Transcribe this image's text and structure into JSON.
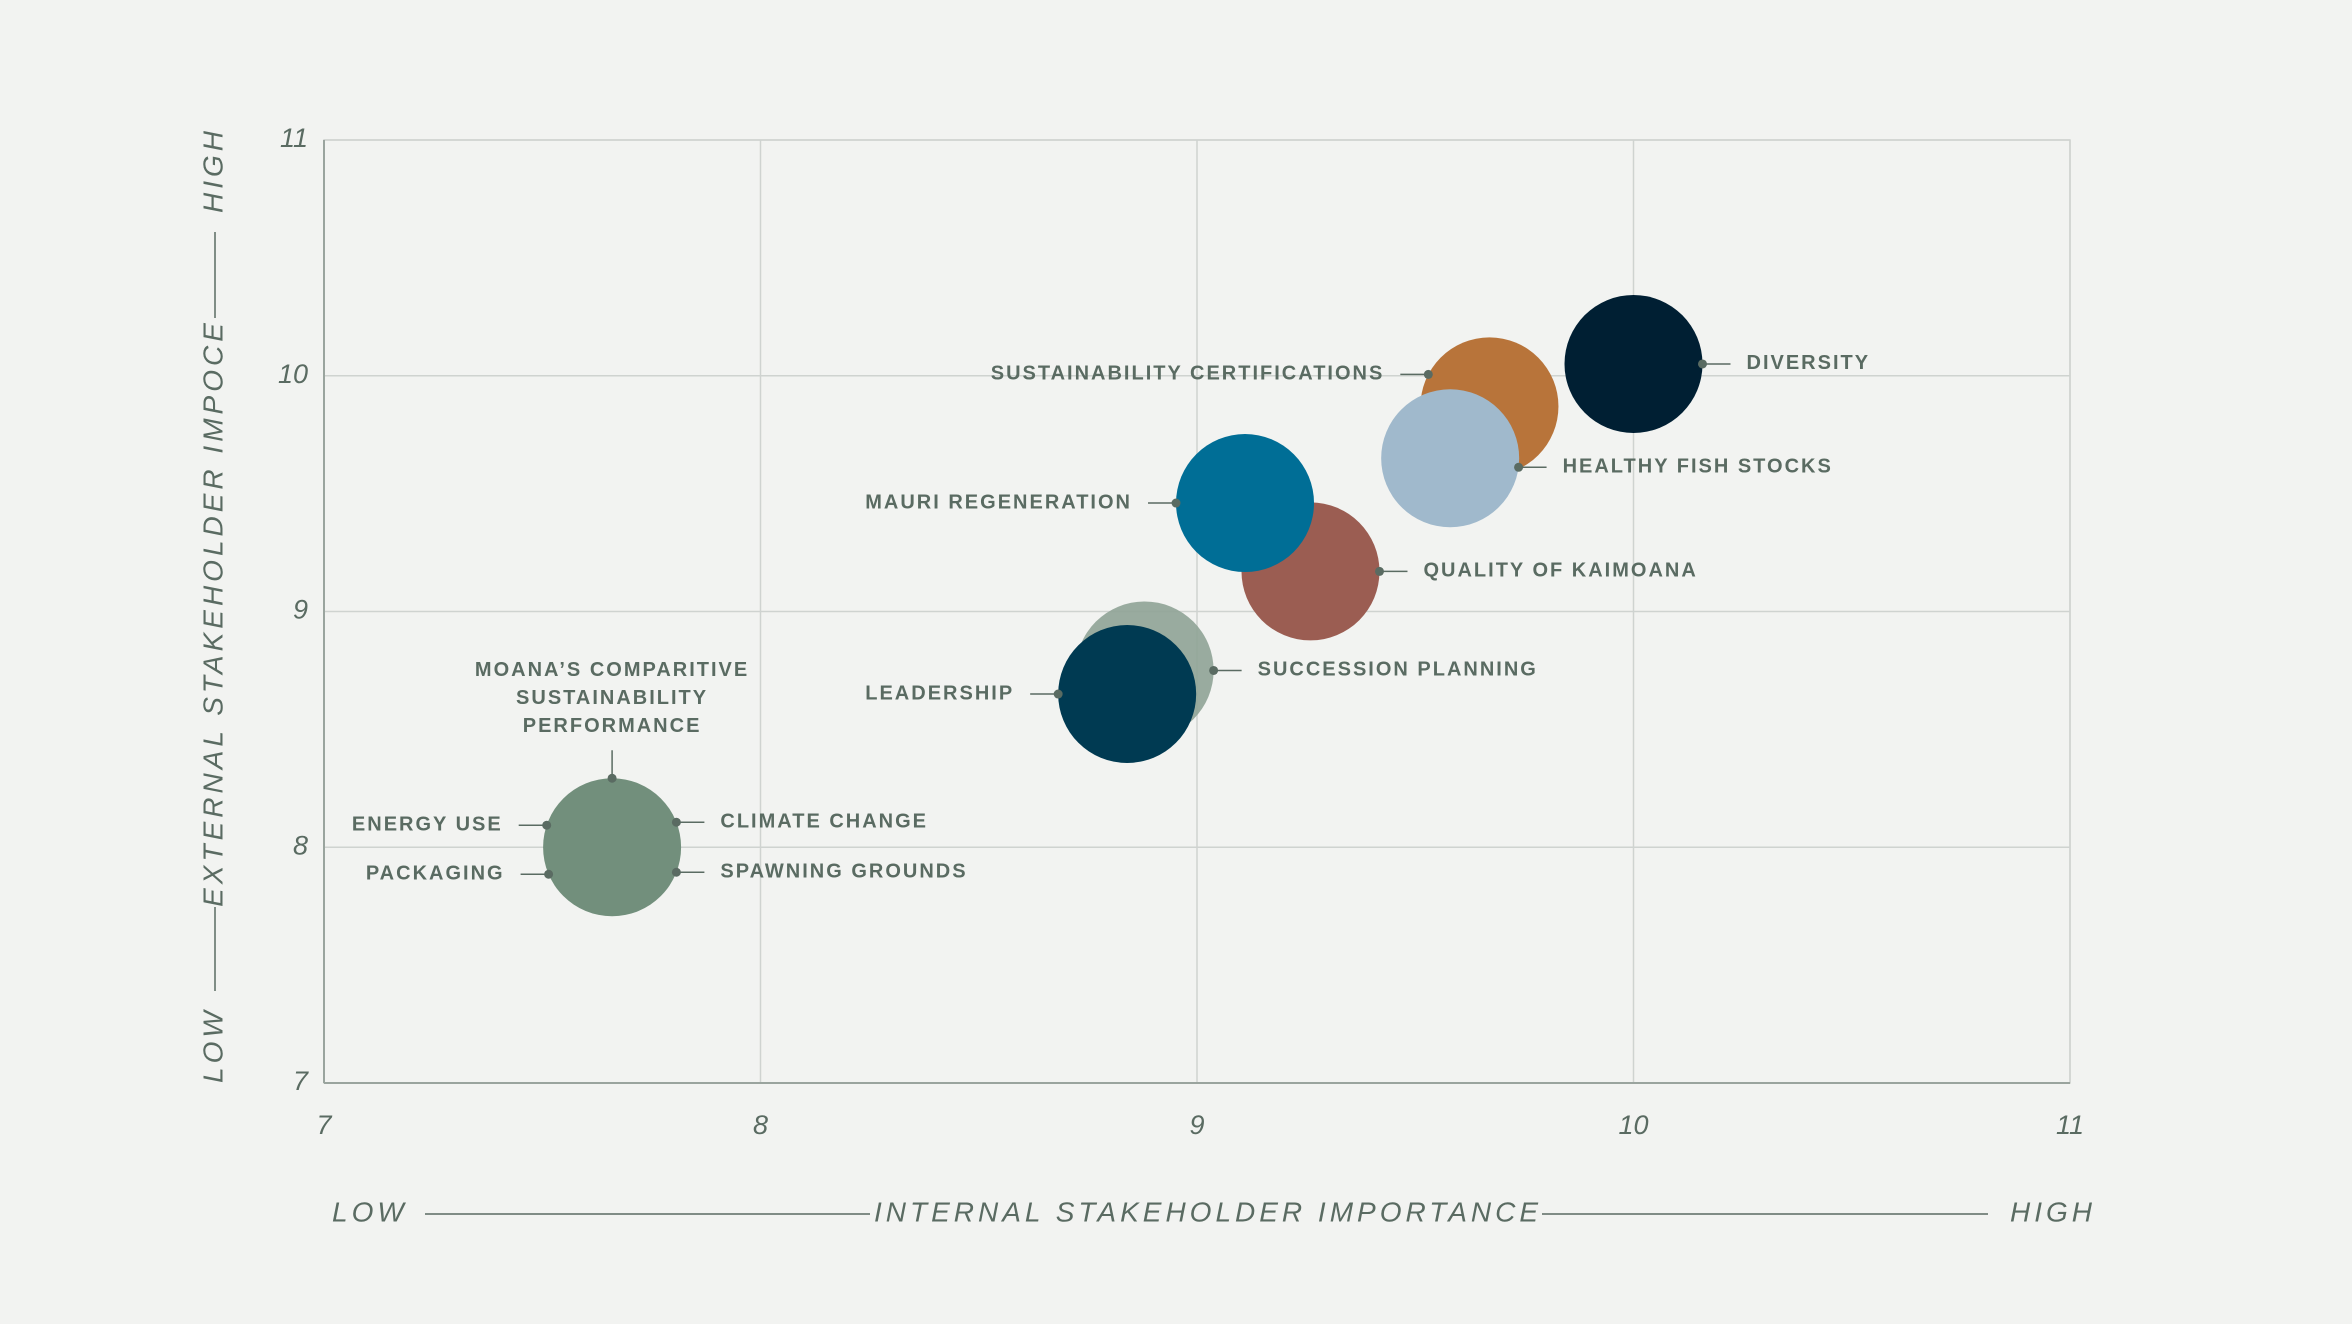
{
  "chart_data": {
    "type": "scatter",
    "x_axis": {
      "label": "INTERNAL STAKEHOLDER IMPORTANCE",
      "low": "LOW",
      "high": "HIGH"
    },
    "y_axis": {
      "label": "EXTERNAL STAKEHOLDER IMPOCE",
      "low": "LOW",
      "high": "HIGH"
    },
    "xlim": [
      7,
      11
    ],
    "xticks": [
      7,
      8,
      9,
      10,
      11
    ],
    "ylim": [
      7,
      11
    ],
    "yticks": [
      7,
      8,
      9,
      10,
      11
    ],
    "grid": true,
    "points": [
      {
        "labels": [
          "MOANA’S COMPARITIVE SUSTAINABILITY PERFORMANCE",
          "ENERGY USE",
          "CLIMATE CHANGE",
          "PACKAGING",
          "SPAWNING GROUNDS"
        ],
        "color": "#728f7c",
        "x": 7.66,
        "y": 8.0
      },
      {
        "labels": [
          "SUCCESSION PLANNING"
        ],
        "color": "#8fa396",
        "x": 8.88,
        "y": 8.75
      },
      {
        "labels": [
          "LEADERSHIP"
        ],
        "color": "#003a52",
        "x": 8.84,
        "y": 8.65
      },
      {
        "labels": [
          "QUALITY OF KAIMOANA"
        ],
        "color": "#9b5d52",
        "x": 9.26,
        "y": 9.17
      },
      {
        "labels": [
          "MAURI REGENERATION"
        ],
        "color": "#006e96",
        "x": 9.11,
        "y": 9.46
      },
      {
        "labels": [
          "SUSTAINABILITY CERTIFICATIONS"
        ],
        "color": "#b8743a",
        "x": 9.67,
        "y": 9.87
      },
      {
        "labels": [
          "HEALTHY FISH STOCKS"
        ],
        "color": "#a0b9cc",
        "x": 9.58,
        "y": 9.65
      },
      {
        "labels": [
          "DIVERSITY"
        ],
        "color": "#001f33",
        "x": 10.0,
        "y": 10.05
      }
    ]
  }
}
